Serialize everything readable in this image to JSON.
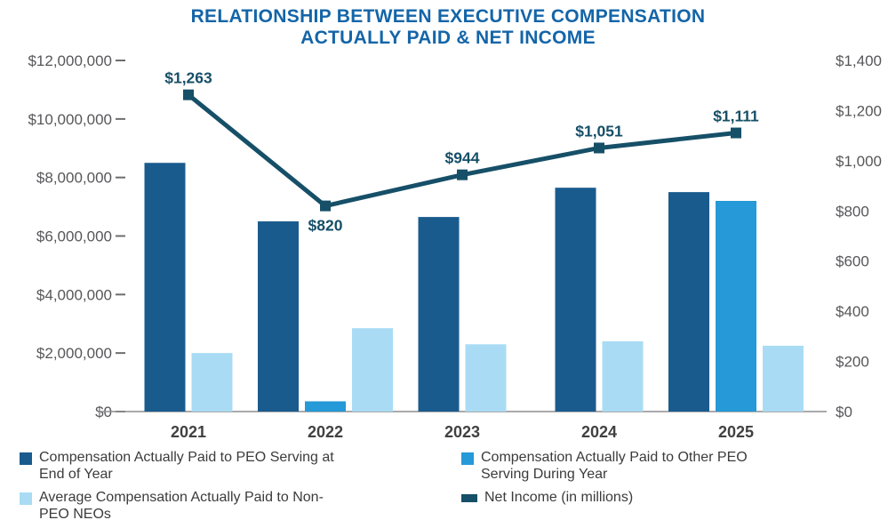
{
  "chart_data": {
    "type": "bar",
    "subtype": "combo-bar-line",
    "title": "RELATIONSHIP BETWEEN EXECUTIVE COMPENSATION ACTUALLY PAID & NET INCOME",
    "title_lines": [
      "RELATIONSHIP BETWEEN EXECUTIVE COMPENSATION",
      "ACTUALLY PAID & NET INCOME"
    ],
    "title_color": "#1465a8",
    "categories": [
      "2021",
      "2022",
      "2023",
      "2024",
      "2025"
    ],
    "bar_series": [
      {
        "name": "Compensation Actually Paid to PEO Serving at End of Year",
        "color": "#1a5b8e",
        "values": [
          8500000,
          6500000,
          6650000,
          7650000,
          7500000
        ]
      },
      {
        "name": "Compensation Actually Paid to Other PEO Serving During Year",
        "color": "#2699d8",
        "values": [
          null,
          350000,
          null,
          null,
          7200000
        ]
      },
      {
        "name": "Average Compensation Actually Paid to Non-PEO NEOs",
        "color": "#a9dcf4",
        "values": [
          2000000,
          2850000,
          2300000,
          2400000,
          2250000
        ]
      }
    ],
    "line_series": {
      "name": "Net Income (in millions)",
      "color": "#164f68",
      "values": [
        1263,
        820,
        944,
        1051,
        1111
      ],
      "labels": [
        "$1,263",
        "$820",
        "$944",
        "$1,051",
        "$1,111"
      ],
      "label_positions": [
        "above",
        "below",
        "above",
        "above",
        "above"
      ]
    },
    "left_axis": {
      "min": 0,
      "max": 12000000,
      "tick_labels": [
        "$12,000,000",
        "$10,000,000",
        "$8,000,000",
        "$6,000,000",
        "$4,000,000",
        "$2,000,000",
        "$0"
      ]
    },
    "right_axis": {
      "min": 0,
      "max": 1400,
      "tick_labels": [
        "$1,400",
        "$1,200",
        "$1,000",
        "$800",
        "$600",
        "$400",
        "$200",
        "$0"
      ]
    },
    "legend": [
      {
        "label": "Compensation Actually Paid to PEO Serving at End of Year",
        "swatch": "square",
        "color": "#1a5b8e"
      },
      {
        "label": "Compensation Actually Paid to Other PEO Serving During Year",
        "swatch": "square",
        "color": "#2699d8"
      },
      {
        "label": "Average Compensation Actually Paid to Non-PEO NEOs",
        "swatch": "square",
        "color": "#a9dcf4"
      },
      {
        "label": "Net Income (in millions)",
        "swatch": "line",
        "color": "#164f68"
      }
    ],
    "axis_text_color": "#57575a",
    "category_label_color": "#414143",
    "grid": "off",
    "legend_position": "bottom"
  }
}
